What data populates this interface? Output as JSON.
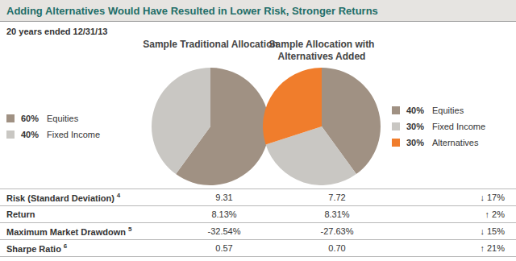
{
  "header": {
    "title": "Adding Alternatives Would Have Resulted in Lower Risk, Stronger Returns",
    "subtitle": "20 years ended 12/31/13"
  },
  "chart_data": [
    {
      "type": "pie",
      "title": "Sample Traditional Allocation",
      "categories": [
        "Equities",
        "Fixed Income"
      ],
      "values": [
        60,
        40
      ],
      "value_labels": [
        "60%",
        "40%"
      ],
      "colors": [
        "#a09183",
        "#c9c7c3"
      ],
      "legend": "left"
    },
    {
      "type": "pie",
      "title": "Sample Allocation with Alternatives Added",
      "categories": [
        "Equities",
        "Fixed Income",
        "Alternatives"
      ],
      "values": [
        40,
        30,
        30
      ],
      "value_labels": [
        "40%",
        "30%",
        "30%"
      ],
      "colors": [
        "#a09183",
        "#c9c7c3",
        "#f07d2c"
      ],
      "legend": "right"
    }
  ],
  "table": {
    "rows": [
      {
        "label": "Risk (Standard Deviation)",
        "footnote": "4",
        "cells": [
          "9.31",
          "7.72",
          "↓ 17%"
        ]
      },
      {
        "label": "Return",
        "cells": [
          "8.13%",
          "8.31%",
          "↑ 2%"
        ]
      },
      {
        "label": "Maximum Market Drawdown",
        "footnote": "5",
        "cells": [
          "-32.54%",
          "-27.63%",
          "↓ 15%"
        ]
      },
      {
        "label": "Sharpe Ratio",
        "footnote": "6",
        "cells": [
          "0.57",
          "0.70",
          "↑ 21%"
        ]
      }
    ]
  }
}
